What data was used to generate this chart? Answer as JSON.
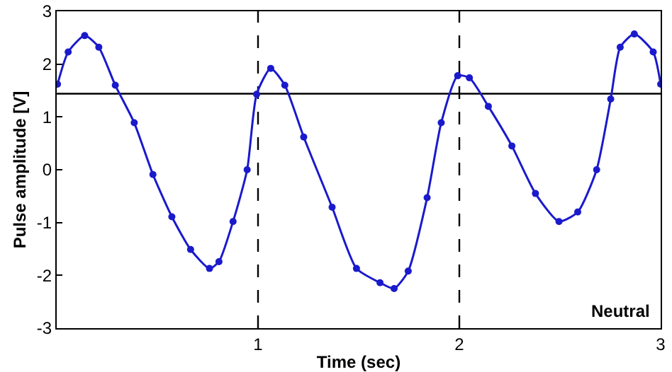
{
  "chart_data": {
    "type": "line",
    "xlabel": "Time (sec)",
    "ylabel": "Pulse amplitude [V]",
    "x": [
      0.004,
      0.057,
      0.139,
      0.209,
      0.291,
      0.385,
      0.478,
      0.572,
      0.665,
      0.759,
      0.806,
      0.876,
      0.946,
      0.993,
      1.063,
      1.133,
      1.227,
      1.368,
      1.489,
      1.606,
      1.676,
      1.746,
      1.84,
      1.91,
      1.992,
      2.05,
      2.144,
      2.261,
      2.378,
      2.495,
      2.588,
      2.682,
      2.752,
      2.799,
      2.869,
      2.963,
      3.0
    ],
    "series": [
      {
        "color": "#1a1acc",
        "values": [
          1.62,
          2.23,
          2.54,
          2.32,
          1.6,
          0.89,
          -0.09,
          -0.89,
          -1.51,
          -1.87,
          -1.74,
          -0.98,
          0,
          1.43,
          1.92,
          1.6,
          0.62,
          -0.71,
          -1.87,
          -2.14,
          -2.25,
          -1.92,
          -0.53,
          0.89,
          1.78,
          1.74,
          1.2,
          0.45,
          -0.45,
          -0.98,
          -0.8,
          0,
          1.34,
          2.32,
          2.57,
          2.23,
          1.62
        ]
      }
    ],
    "marker": "circle",
    "line_style": "solid",
    "xlim": [
      0,
      3
    ],
    "xticks": [
      1,
      2,
      3
    ],
    "ylim": [
      -3,
      3
    ],
    "yticks": [
      -3,
      -2,
      -1,
      0,
      1,
      2,
      3
    ],
    "ref_lines": [
      {
        "axis": "x",
        "value": 1,
        "color": "#000000",
        "line_style": "dashed"
      },
      {
        "axis": "x",
        "value": 2,
        "color": "#000000",
        "line_style": "dashed"
      },
      {
        "axis": "y",
        "value": 1.44,
        "color": "#000000",
        "line_style": "solid"
      }
    ],
    "annotations": [
      "Neutral"
    ],
    "grid": false
  }
}
